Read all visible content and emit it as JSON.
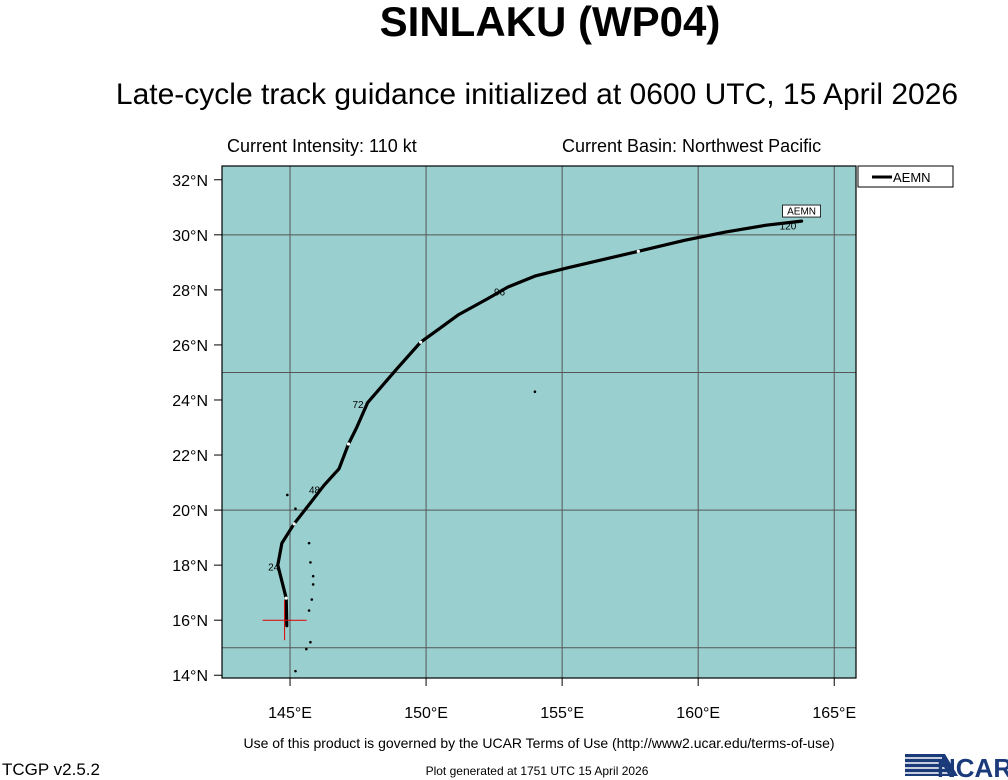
{
  "header": {
    "title": "SINLAKU (WP04)",
    "subtitle": "Late-cycle track guidance initialized at 0600 UTC, 15 April 2026",
    "intensity": "Current Intensity: 110 kt",
    "basin": "Current Basin: Northwest Pacific"
  },
  "legend": {
    "label": "AEMN"
  },
  "footer": {
    "terms": "Use of this product is governed by the UCAR Terms of Use (http://www2.ucar.edu/terms-of-use)",
    "version": "TCGP v2.5.2",
    "generated": "Plot generated at 1751 UTC   15 April 2026",
    "logo": "NCAR"
  },
  "colors": {
    "ocean": "#99d0cf",
    "track": "#000000",
    "current_position": "#e00000",
    "grid": "#555555"
  },
  "chart_data": {
    "type": "map-track",
    "x_ticks": [
      "145°E",
      "150°E",
      "155°E",
      "160°E",
      "165°E"
    ],
    "y_ticks": [
      "14°N",
      "16°N",
      "18°N",
      "20°N",
      "22°N",
      "24°N",
      "26°N",
      "28°N",
      "30°N",
      "32°N"
    ],
    "lon_range": [
      142.5,
      165.8
    ],
    "lat_range": [
      13.9,
      32.5
    ],
    "grid_lons": [
      145,
      150,
      155,
      160,
      165
    ],
    "grid_lats": [
      15,
      20,
      25,
      30
    ],
    "current_position": {
      "lon": 144.8,
      "lat": 16.0
    },
    "track": {
      "name": "AEMN",
      "points": [
        [
          144.88,
          15.8
        ],
        [
          144.86,
          16.8
        ],
        [
          144.55,
          18.0
        ],
        [
          144.7,
          18.8
        ],
        [
          145.15,
          19.5
        ],
        [
          145.7,
          20.2
        ],
        [
          146.25,
          20.9
        ],
        [
          146.8,
          21.5
        ],
        [
          147.15,
          22.4
        ],
        [
          147.45,
          23.0
        ],
        [
          147.85,
          23.9
        ],
        [
          148.9,
          25.1
        ],
        [
          149.8,
          26.1
        ],
        [
          150.5,
          26.6
        ],
        [
          151.2,
          27.1
        ],
        [
          152.3,
          27.7
        ],
        [
          153.0,
          28.1
        ],
        [
          154.0,
          28.5
        ],
        [
          155.2,
          28.8
        ],
        [
          156.5,
          29.1
        ],
        [
          157.8,
          29.4
        ],
        [
          159.5,
          29.8
        ],
        [
          161.0,
          30.1
        ],
        [
          162.5,
          30.35
        ],
        [
          163.8,
          30.5
        ]
      ],
      "tau_labels": [
        {
          "label": "24",
          "lon": 144.4,
          "lat": 17.8
        },
        {
          "label": "48",
          "lon": 145.9,
          "lat": 20.6
        },
        {
          "label": "72",
          "lon": 147.5,
          "lat": 23.7
        },
        {
          "label": "96",
          "lon": 152.7,
          "lat": 27.8
        },
        {
          "label": "120",
          "lon": 163.3,
          "lat": 30.2
        }
      ]
    },
    "islands": [
      [
        144.85,
        13.5
      ],
      [
        145.2,
        14.15
      ],
      [
        145.6,
        14.95
      ],
      [
        145.75,
        15.2
      ],
      [
        145.7,
        16.35
      ],
      [
        145.8,
        16.75
      ],
      [
        145.85,
        17.3
      ],
      [
        145.85,
        17.6
      ],
      [
        145.75,
        18.1
      ],
      [
        145.7,
        18.8
      ],
      [
        145.2,
        20.05
      ],
      [
        144.9,
        20.55
      ],
      [
        154.0,
        24.3
      ]
    ]
  }
}
